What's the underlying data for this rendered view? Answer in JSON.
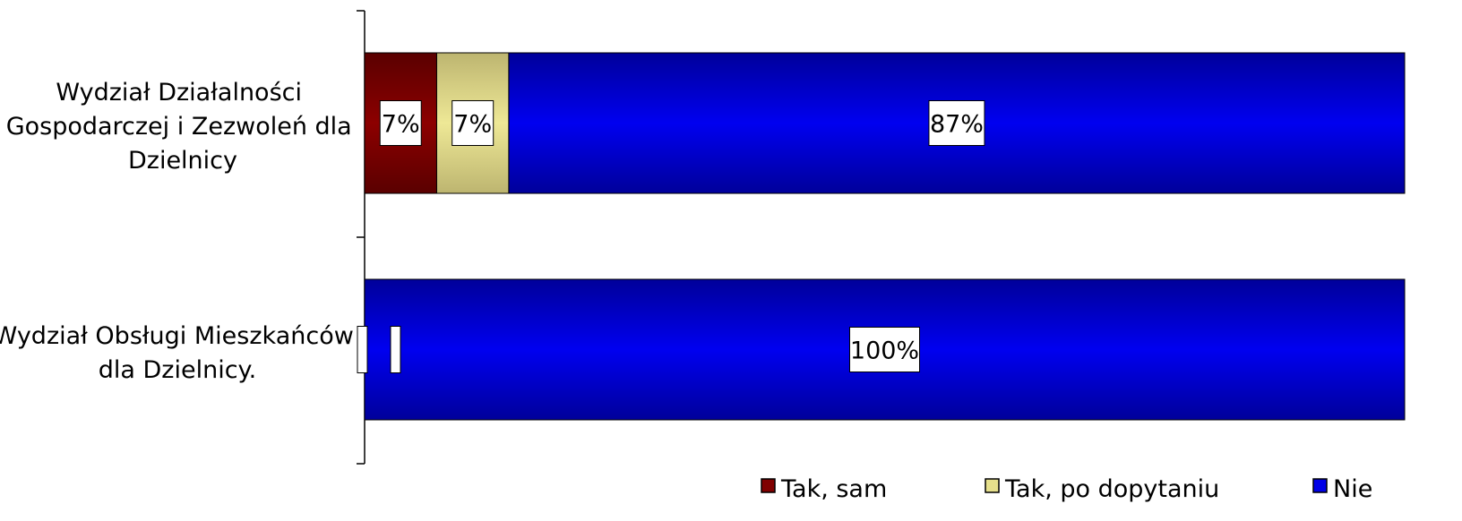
{
  "chart_data": {
    "type": "bar",
    "orientation": "horizontal",
    "stacked": "percent",
    "categories": [
      "Wydział Działalności Gospodarczej i Zezwoleń dla Dzielnicy",
      "Wydział Obsługi Mieszkańców dla Dzielnicy."
    ],
    "series": [
      {
        "name": "Tak, sam",
        "values": [
          7,
          0
        ],
        "labels": [
          "7%",
          ""
        ],
        "color": "#800000"
      },
      {
        "name": "Tak, po dopytaniu",
        "values": [
          7,
          0
        ],
        "labels": [
          "7%",
          ""
        ],
        "color": "#e6e08c"
      },
      {
        "name": "Nie",
        "values": [
          87,
          100
        ],
        "labels": [
          "87%",
          "100%"
        ],
        "color": "#0000e6"
      }
    ],
    "legend_position": "bottom",
    "grid": false
  }
}
